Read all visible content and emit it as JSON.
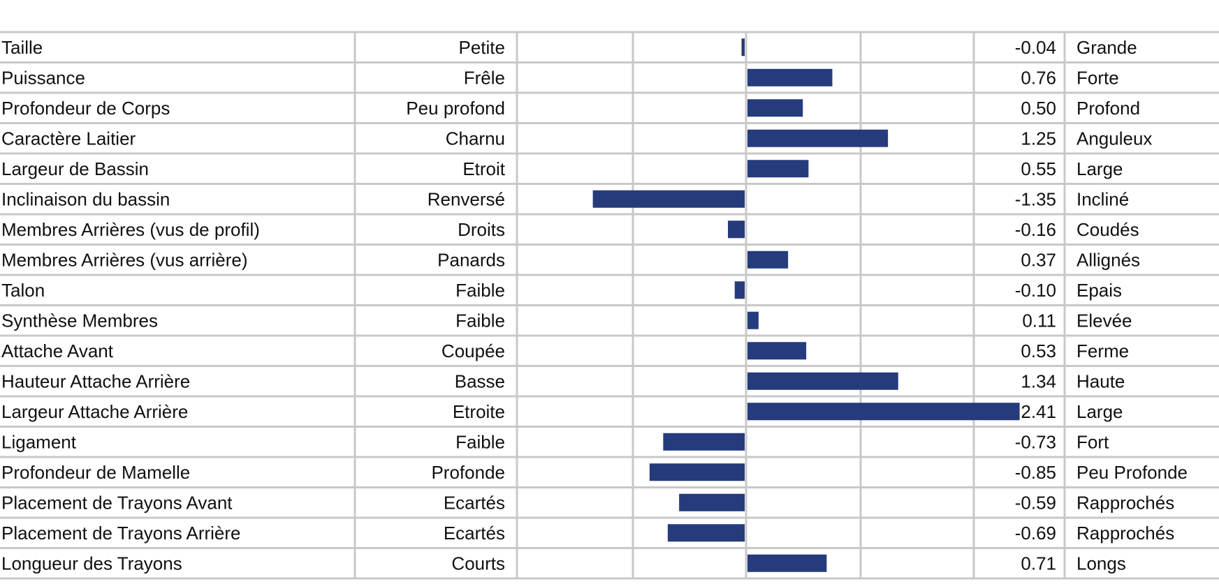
{
  "colors": {
    "bar": "#263b7c",
    "grid": "#c8c8c8"
  },
  "chart_data": {
    "type": "bar",
    "orientation": "horizontal",
    "xlim": [
      -2.0,
      2.0
    ],
    "grid": true,
    "rows": [
      {
        "trait": "Taille",
        "low": "Petite",
        "value": -0.04,
        "value_label": "-0.04",
        "high": "Grande"
      },
      {
        "trait": "Puissance",
        "low": "Frêle",
        "value": 0.76,
        "value_label": "0.76",
        "high": "Forte"
      },
      {
        "trait": "Profondeur de Corps",
        "low": "Peu profond",
        "value": 0.5,
        "value_label": "0.50",
        "high": "Profond"
      },
      {
        "trait": "Caractère Laitier",
        "low": "Charnu",
        "value": 1.25,
        "value_label": "1.25",
        "high": "Anguleux"
      },
      {
        "trait": "Largeur de Bassin",
        "low": "Etroit",
        "value": 0.55,
        "value_label": "0.55",
        "high": "Large"
      },
      {
        "trait": "Inclinaison du bassin",
        "low": "Renversé",
        "value": -1.35,
        "value_label": "-1.35",
        "high": "Incliné"
      },
      {
        "trait": "Membres Arrières (vus de profil)",
        "low": "Droits",
        "value": -0.16,
        "value_label": "-0.16",
        "high": "Coudés"
      },
      {
        "trait": "Membres Arrières (vus arrière)",
        "low": "Panards",
        "value": 0.37,
        "value_label": "0.37",
        "high": "Allignés"
      },
      {
        "trait": "Talon",
        "low": "Faible",
        "value": -0.1,
        "value_label": "-0.10",
        "high": "Epais"
      },
      {
        "trait": "Synthèse Membres",
        "low": "Faible",
        "value": 0.11,
        "value_label": "0.11",
        "high": "Elevée"
      },
      {
        "trait": "Attache Avant",
        "low": "Coupée",
        "value": 0.53,
        "value_label": "0.53",
        "high": "Ferme"
      },
      {
        "trait": "Hauteur Attache Arrière",
        "low": "Basse",
        "value": 1.34,
        "value_label": "1.34",
        "high": "Haute"
      },
      {
        "trait": "Largeur Attache Arrière",
        "low": "Etroite",
        "value": 2.41,
        "value_label": "2.41",
        "high": "Large"
      },
      {
        "trait": "Ligament",
        "low": "Faible",
        "value": -0.73,
        "value_label": "-0.73",
        "high": "Fort"
      },
      {
        "trait": "Profondeur de Mamelle",
        "low": "Profonde",
        "value": -0.85,
        "value_label": "-0.85",
        "high": "Peu Profonde"
      },
      {
        "trait": "Placement de Trayons Avant",
        "low": "Ecartés",
        "value": -0.59,
        "value_label": "-0.59",
        "high": "Rapprochés"
      },
      {
        "trait": "Placement de Trayons Arrière",
        "low": "Ecartés",
        "value": -0.69,
        "value_label": "-0.69",
        "high": "Rapprochés"
      },
      {
        "trait": "Longueur des Trayons",
        "low": "Courts",
        "value": 0.71,
        "value_label": "0.71",
        "high": "Longs"
      }
    ]
  }
}
